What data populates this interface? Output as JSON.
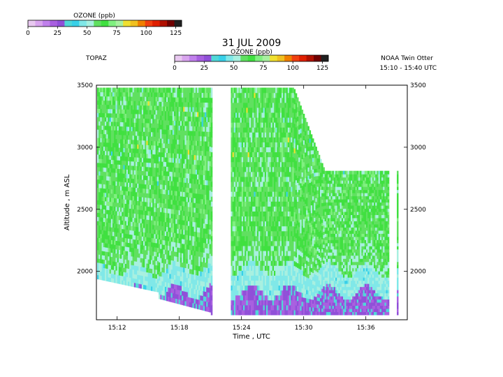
{
  "chart_data": {
    "type": "heatmap",
    "title": "31 JUL 2009",
    "instrument_label": "TOPAZ",
    "platform_label": "NOAA Twin Otter",
    "time_range_label": "15:10 - 15:40 UTC",
    "xlabel": "Time , UTC",
    "ylabel": "Altitude , m ASL",
    "x_ticks": [
      "15:12",
      "15:18",
      "15:24",
      "15:30",
      "15:36"
    ],
    "x_range": [
      "15:10",
      "15:40"
    ],
    "y_ticks": [
      3500,
      3000,
      2500,
      2000
    ],
    "y_range": [
      1610,
      3500
    ],
    "colorbar": {
      "label": "OZONE (ppb)",
      "ticks": [
        0,
        25,
        50,
        75,
        100,
        125
      ],
      "range": [
        0,
        130
      ],
      "colors": [
        "#e8c8f0",
        "#d8a4ee",
        "#c080ec",
        "#a860e0",
        "#9050d8",
        "#50d8d8",
        "#38d0e8",
        "#80e8e8",
        "#a8f0e0",
        "#60e060",
        "#40e040",
        "#80f080",
        "#a8f0a0",
        "#f0e030",
        "#f0c020",
        "#f08000",
        "#f04010",
        "#e02000",
        "#b01000",
        "#700000",
        "#202020"
      ]
    },
    "notable_values": {
      "background_ozone_ppb": 62,
      "boundary_layer_ozone_ppb": 45,
      "near_surface_ozone_ppb": 20
    },
    "data_gaps": [
      [
        "15:21",
        "15:23"
      ],
      [
        "15:38",
        "15:39"
      ]
    ],
    "max_altitude_profile": [
      {
        "time": "15:10",
        "altitude": 3480
      },
      {
        "time": "15:29",
        "altitude": 3480
      },
      {
        "time": "15:32",
        "altitude": 2810
      },
      {
        "time": "15:38",
        "altitude": 2810
      },
      {
        "time": "15:39",
        "altitude": 2810
      }
    ]
  },
  "colorbar_top": {
    "label": "OZONE (ppb)",
    "ticks": [
      0,
      25,
      50,
      75,
      100,
      125
    ]
  }
}
